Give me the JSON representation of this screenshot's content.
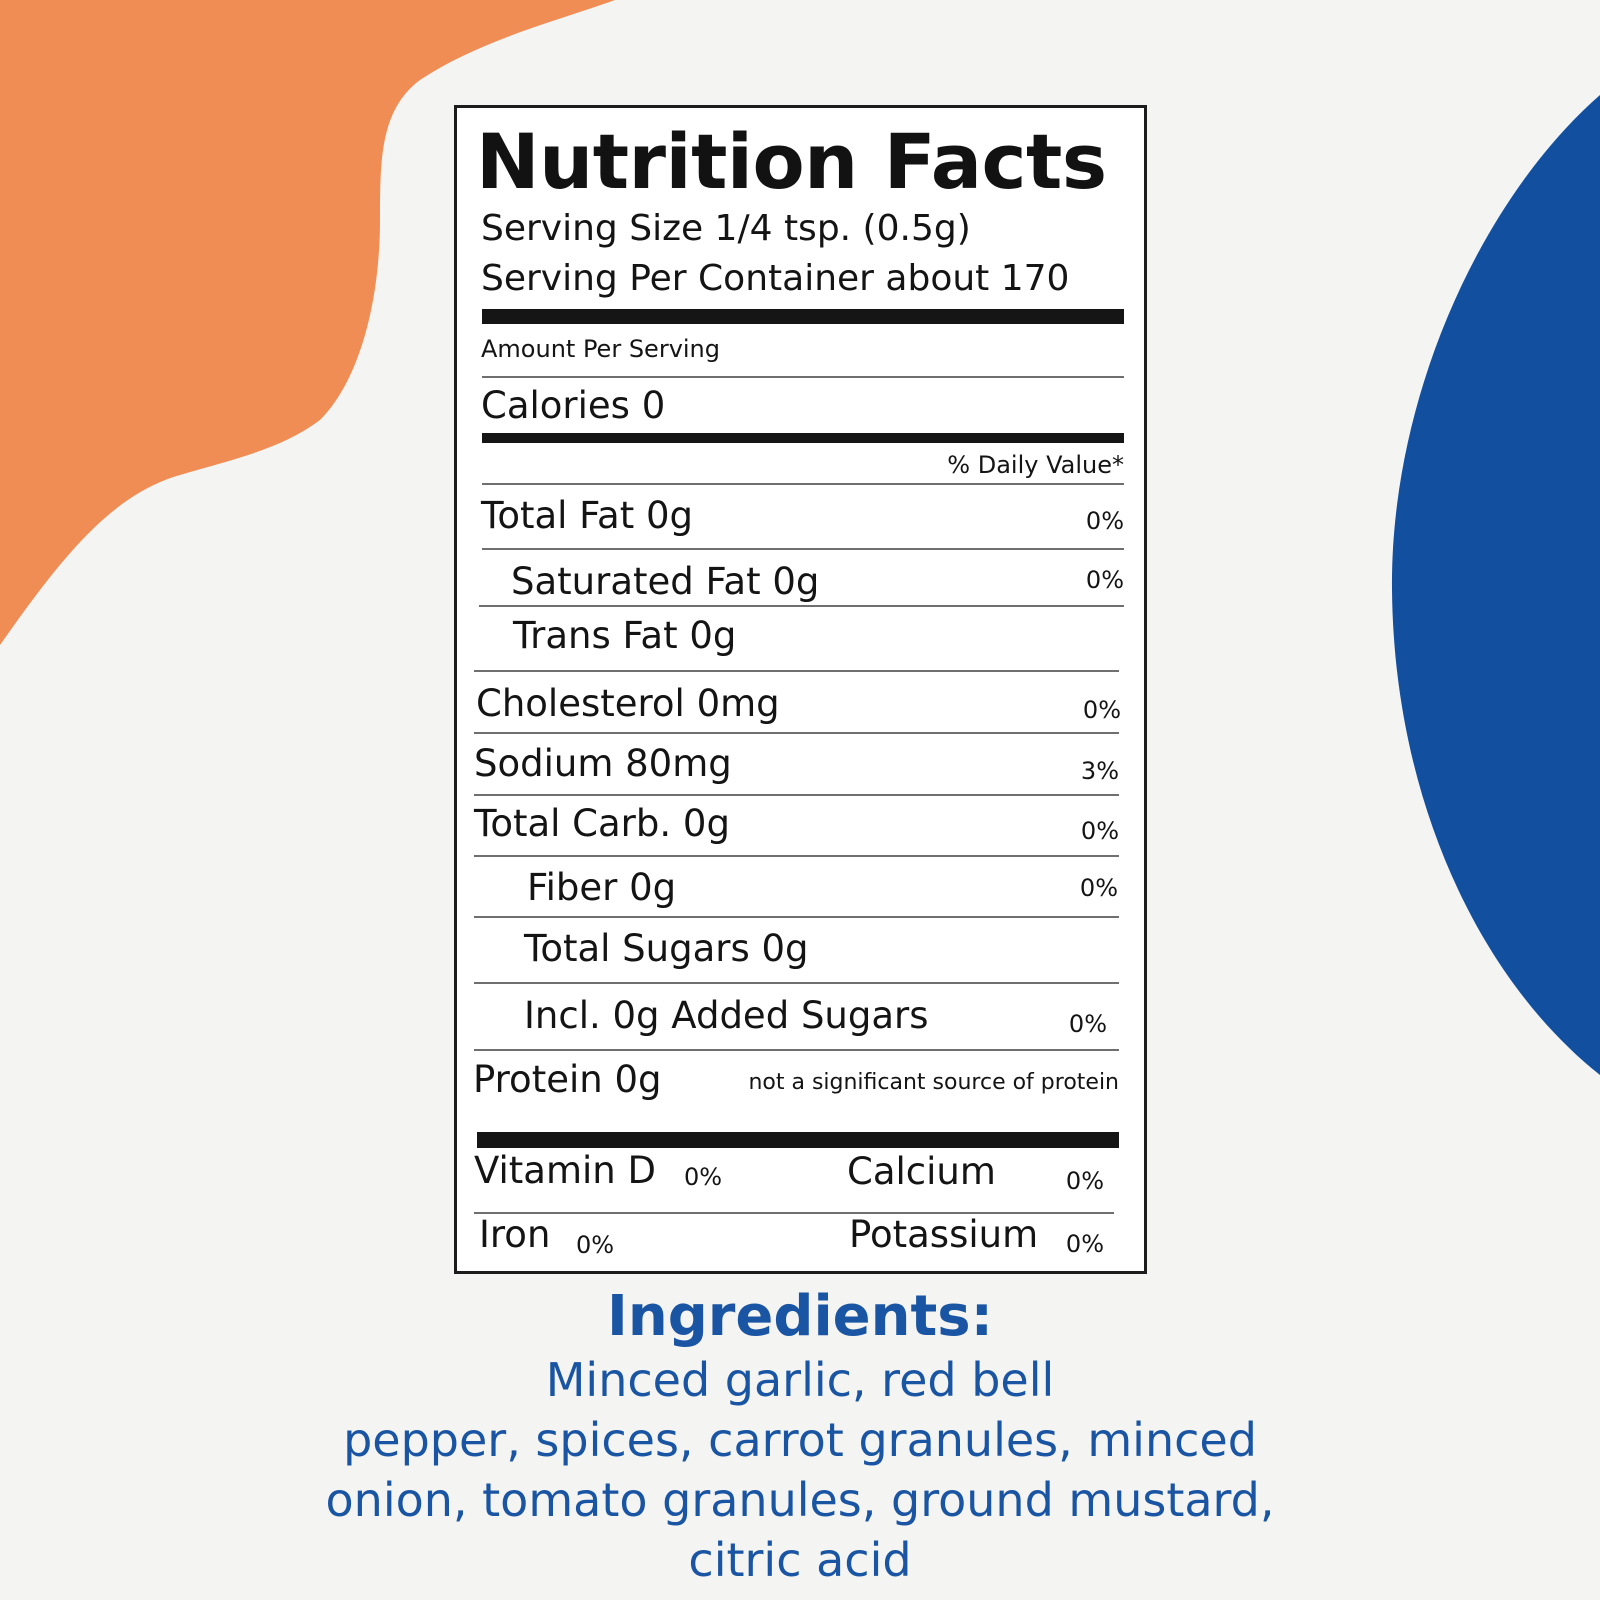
{
  "colors": {
    "background": "#f4f4f3",
    "accent_orange": "#f08d55",
    "accent_blue": "#124f9e",
    "ingredients_text": "#1a55a3"
  },
  "label": {
    "title": "Nutrition Facts",
    "serving_size": "Serving Size 1/4 tsp. (0.5g)",
    "servings_per_container": "Serving Per Container about 170",
    "amount_per_serving": "Amount Per Serving",
    "calories": "Calories 0",
    "daily_value_header": "% Daily Value*",
    "nutrients": {
      "total_fat": {
        "label": "Total Fat 0g",
        "dv": "0%"
      },
      "saturated_fat": {
        "label": "Saturated Fat 0g",
        "dv": "0%"
      },
      "trans_fat": {
        "label": "Trans Fat 0g"
      },
      "cholesterol": {
        "label": "Cholesterol 0mg",
        "dv": "0%"
      },
      "sodium": {
        "label": "Sodium 80mg",
        "dv": "3%"
      },
      "total_carb": {
        "label": "Total Carb. 0g",
        "dv": "0%"
      },
      "fiber": {
        "label": "Fiber 0g",
        "dv": "0%"
      },
      "total_sugars": {
        "label": "Total Sugars 0g"
      },
      "added_sugars": {
        "label": "Incl. 0g Added Sugars",
        "dv": "0%"
      },
      "protein": {
        "label": "Protein 0g",
        "note": "not a significant source of protein"
      }
    },
    "vitamins": {
      "vitamin_d": {
        "label": "Vitamin D",
        "dv": "0%"
      },
      "calcium": {
        "label": "Calcium",
        "dv": "0%"
      },
      "iron": {
        "label": "Iron",
        "dv": "0%"
      },
      "potassium": {
        "label": "Potassium",
        "dv": "0%"
      }
    }
  },
  "ingredients": {
    "title": "Ingredients:",
    "lines": [
      "Minced garlic, red bell",
      "pepper, spices, carrot granules, minced",
      "onion, tomato granules, ground mustard,",
      "citric acid"
    ]
  }
}
